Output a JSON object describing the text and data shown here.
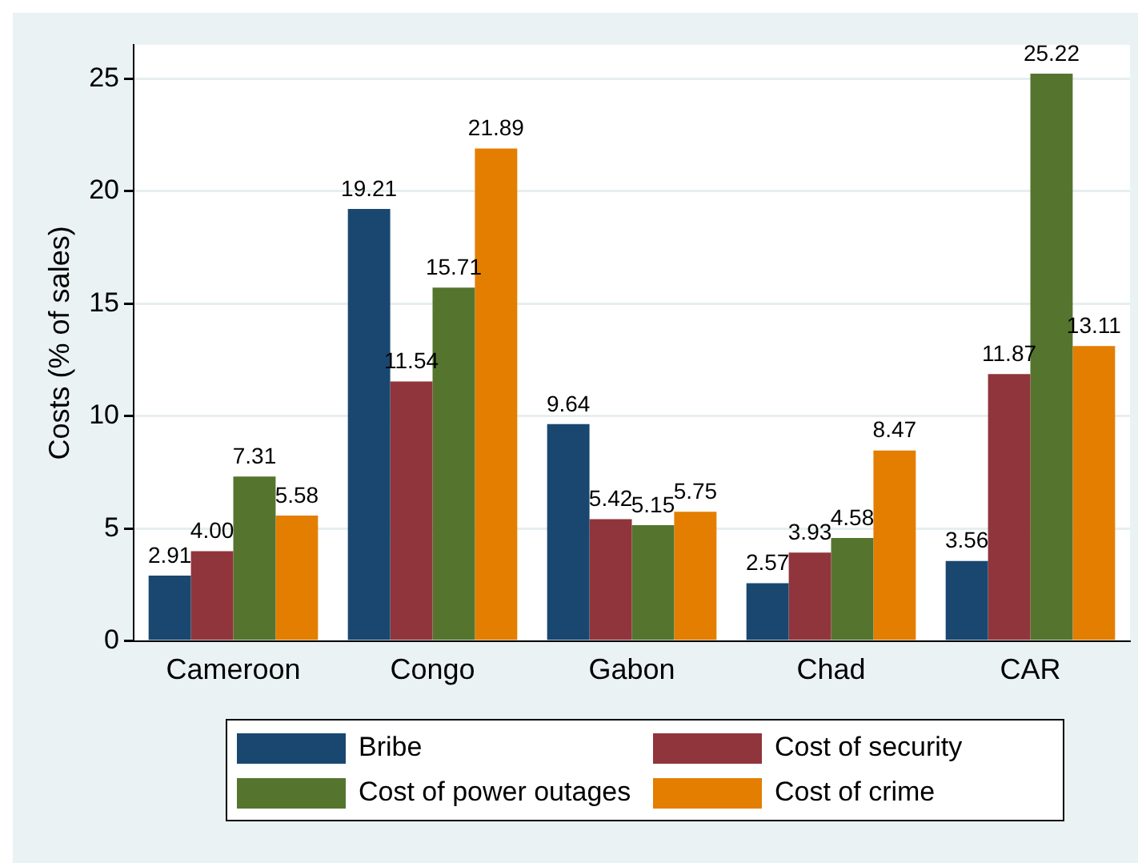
{
  "chart_data": {
    "type": "bar",
    "ylabel": "Costs (% of sales)",
    "categories": [
      "Cameroon",
      "Congo",
      "Gabon",
      "Chad",
      "CAR"
    ],
    "series": [
      {
        "name": "Bribe",
        "color": "#1a476f",
        "values": [
          2.91,
          19.21,
          9.64,
          2.57,
          3.56
        ],
        "value_labels": [
          "2.91",
          "19.21",
          "9.64",
          "2.57",
          "3.56"
        ]
      },
      {
        "name": "Cost of security",
        "color": "#90353b",
        "values": [
          4.0,
          11.54,
          5.42,
          3.93,
          11.87
        ],
        "value_labels": [
          "4.00",
          "11.54",
          "5.42",
          "3.93",
          "11.87"
        ]
      },
      {
        "name": "Cost of power outages",
        "color": "#55752f",
        "values": [
          7.31,
          15.71,
          5.15,
          4.58,
          25.22
        ],
        "value_labels": [
          "7.31",
          "15.71",
          "5.15",
          "4.58",
          "25.22"
        ]
      },
      {
        "name": "Cost of crime",
        "color": "#e37e00",
        "values": [
          5.58,
          21.89,
          5.75,
          8.47,
          13.11
        ],
        "value_labels": [
          "5.58",
          "21.89",
          "5.75",
          "8.47",
          "13.11"
        ]
      }
    ],
    "ylim": [
      0,
      26.5
    ],
    "yticks": [
      0,
      5,
      10,
      15,
      20,
      25
    ],
    "grid": "y",
    "legend": "bottom"
  }
}
